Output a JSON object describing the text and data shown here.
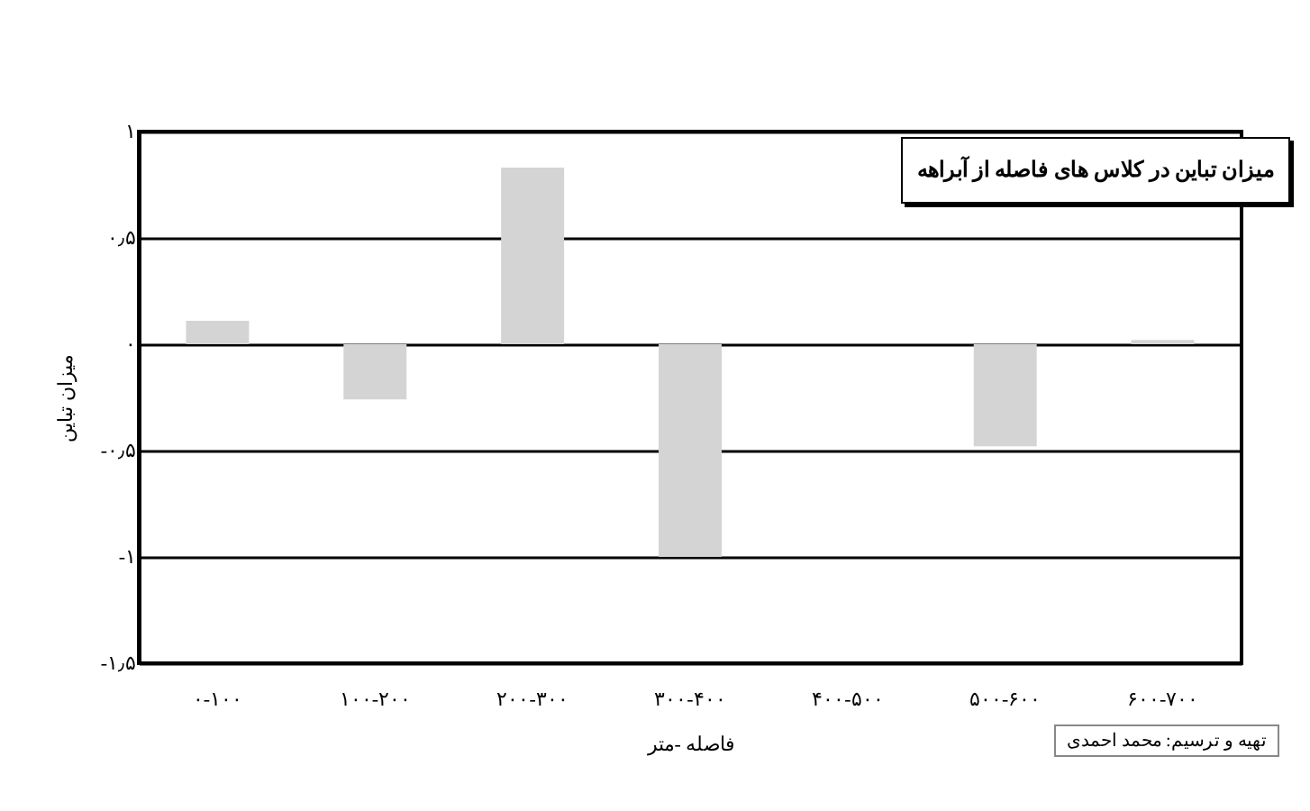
{
  "chart_data": {
    "type": "bar",
    "xlabel": "فاصله -متر",
    "ylabel": "میزان تباین",
    "categories": [
      "۰-۱۰۰",
      "۱۰۰-۲۰۰",
      "۲۰۰-۳۰۰",
      "۳۰۰-۴۰۰",
      "۴۰۰-۵۰۰",
      "۵۰۰-۶۰۰",
      "۶۰۰-۷۰۰"
    ],
    "values": [
      0.11,
      -0.26,
      0.83,
      -1.0,
      0,
      -0.48,
      0.02
    ],
    "color": "#d4d4d4",
    "ylim": [
      -1.5,
      1
    ],
    "yticks": [
      {
        "value": -1.5,
        "label": "-۱٫۵"
      },
      {
        "value": -1,
        "label": "-۱"
      },
      {
        "value": -0.5,
        "label": "-۰٫۵"
      },
      {
        "value": 0,
        "label": "۰"
      },
      {
        "value": 0.5,
        "label": "۰٫۵"
      },
      {
        "value": 1,
        "label": "۱"
      }
    ],
    "grid": "y",
    "annotations": [
      "میزان تباین در کلاس های فاصله  از آبراهه",
      "تهیه و ترسیم: محمد احمدی"
    ]
  }
}
